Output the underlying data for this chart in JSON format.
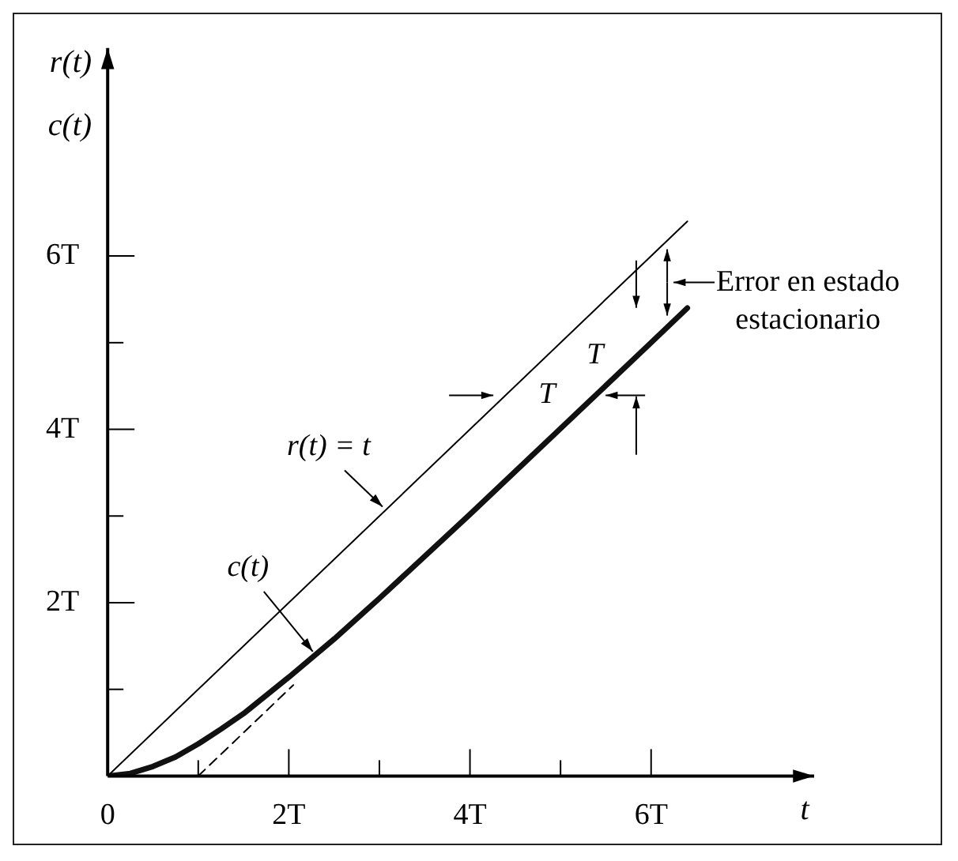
{
  "chart_data": {
    "type": "line",
    "xlabel": "t",
    "ylabel": "r(t)\nc(t)",
    "xlim": [
      0,
      7.8
    ],
    "ylim": [
      0,
      8.4
    ],
    "xticks": [
      {
        "value": 0,
        "label": "0"
      },
      {
        "value": 1,
        "label": null
      },
      {
        "value": 2,
        "label": "2T"
      },
      {
        "value": 3,
        "label": null
      },
      {
        "value": 4,
        "label": "4T"
      },
      {
        "value": 5,
        "label": null
      },
      {
        "value": 6,
        "label": "6T"
      }
    ],
    "yticks": [
      {
        "value": 1,
        "label": null
      },
      {
        "value": 2,
        "label": "2T"
      },
      {
        "value": 3,
        "label": null
      },
      {
        "value": 4,
        "label": "4T"
      },
      {
        "value": 5,
        "label": null
      },
      {
        "value": 6,
        "label": "6T"
      }
    ],
    "marker": "none",
    "grid": false,
    "legend": false,
    "series": [
      {
        "x": [
          0,
          6.4
        ],
        "values": [
          0,
          6.4
        ],
        "color": "#000000",
        "line_style": "solid"
      },
      {
        "x": [
          0,
          0.25,
          0.5,
          0.75,
          1,
          1.25,
          1.5,
          2,
          2.5,
          3,
          4,
          5,
          6,
          6.4
        ],
        "values": [
          0,
          0.03,
          0.11,
          0.22,
          0.37,
          0.54,
          0.72,
          1.14,
          1.58,
          2.05,
          3.02,
          4.01,
          5.0,
          5.4
        ],
        "color": "#111111",
        "line_style": "solid"
      },
      {
        "x": [
          1,
          2.05
        ],
        "values": [
          0,
          1.05
        ],
        "color": "#000000",
        "line_style": "dashed"
      }
    ],
    "annotations": [
      {
        "text": "r(t) = t",
        "x": 3.07,
        "y": 3.07
      },
      {
        "text": "c(t)",
        "x": 2.3,
        "y": 1.4
      },
      "T",
      "T",
      "Error en estado\nestacionario"
    ]
  }
}
